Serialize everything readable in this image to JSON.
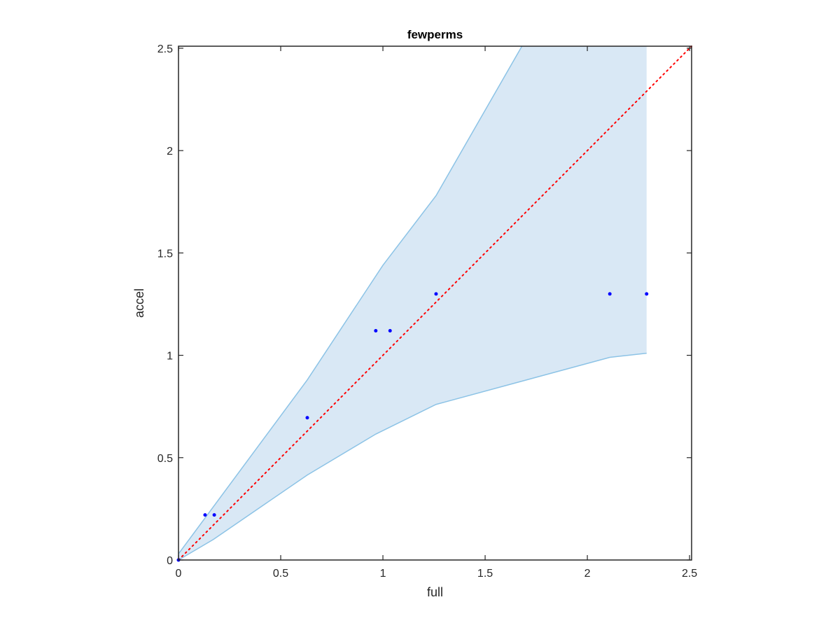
{
  "chart_data": {
    "type": "scatter",
    "title": "fewperms",
    "xlabel": "full",
    "ylabel": "accel",
    "xlim": [
      0,
      2.51
    ],
    "ylim": [
      0,
      2.51
    ],
    "xticks": [
      0,
      0.5,
      1,
      1.5,
      2,
      2.5
    ],
    "yticks": [
      0,
      0.5,
      1,
      1.5,
      2,
      2.5
    ],
    "xtick_labels": [
      "0",
      "0.5",
      "1",
      "1.5",
      "2",
      "2.5"
    ],
    "ytick_labels": [
      "0",
      "0.5",
      "1",
      "1.5",
      "2",
      "2.5"
    ],
    "grid": false,
    "points": {
      "color": "#0000ff",
      "x": [
        0,
        0.13,
        0.175,
        0.63,
        0.965,
        1.035,
        1.26,
        2.11,
        2.29
      ],
      "y": [
        0,
        0.22,
        0.22,
        0.695,
        1.12,
        1.12,
        1.3,
        1.3,
        1.3
      ]
    },
    "band": {
      "fill_color": "#d9e8f5",
      "edge_color": "#8cc3e6",
      "x": [
        0,
        0.63,
        1.0,
        1.26,
        1.68,
        2.29
      ],
      "upper": [
        0.03,
        0.88,
        1.44,
        1.78,
        2.51,
        2.51
      ],
      "lower": [
        0,
        0.415,
        0.62,
        0.76,
        0.89,
        1.01
      ],
      "lower_x": [
        0,
        0.17,
        0.63,
        0.965,
        1.26,
        2.11,
        2.29
      ],
      "lower_y": [
        0,
        0.1,
        0.415,
        0.615,
        0.76,
        0.99,
        1.01
      ]
    },
    "reference_line": {
      "style": "dotted",
      "color": "#ff0000",
      "x": [
        0,
        2.51
      ],
      "y": [
        0,
        2.51
      ]
    }
  }
}
